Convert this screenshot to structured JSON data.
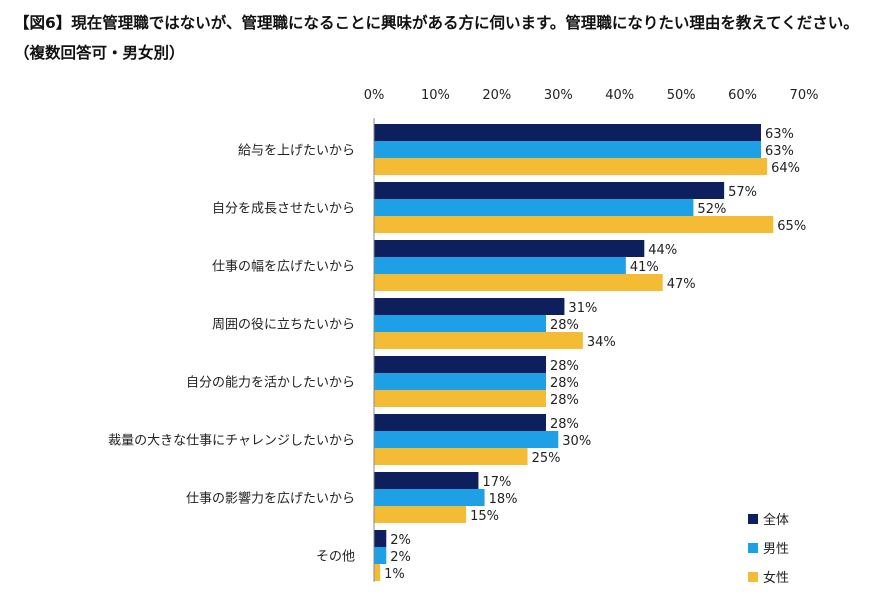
{
  "chart_data": {
    "type": "bar",
    "orientation": "horizontal",
    "title": "【図6】現在管理職ではないが、管理職になることに興味がある方に伺います。管理職になりたい理由を教えてください。（複数回答可・男女別）",
    "categories": [
      "給与を上げたいから",
      "自分を成長させたいから",
      "仕事の幅を広げたいから",
      "周囲の役に立ちたいから",
      "自分の能力を活かしたいから",
      "裁量の大きな仕事にチャレンジしたいから",
      "仕事の影響力を広げたいから",
      "その他"
    ],
    "series": [
      {
        "name": "全体",
        "color": "#0d1f5c",
        "values": [
          63,
          57,
          44,
          31,
          28,
          28,
          17,
          2
        ]
      },
      {
        "name": "男性",
        "color": "#1ea0e6",
        "values": [
          63,
          52,
          41,
          28,
          28,
          30,
          18,
          2
        ]
      },
      {
        "name": "女性",
        "color": "#f3bc34",
        "values": [
          64,
          65,
          47,
          34,
          28,
          25,
          15,
          1
        ]
      }
    ],
    "xlim": [
      0,
      70
    ],
    "xticks": [
      "0%",
      "10%",
      "20%",
      "30%",
      "40%",
      "50%",
      "60%",
      "70%"
    ],
    "value_suffix": "%",
    "axis_position": "top",
    "grid": false,
    "legend_position": "bottom-right"
  }
}
